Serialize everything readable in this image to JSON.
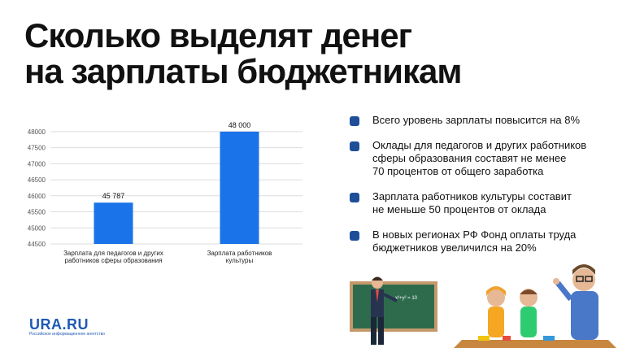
{
  "header": {
    "title_line1": "Сколько выделят денег",
    "title_line2": "на зарплаты бюджетникам"
  },
  "chart_data": {
    "type": "bar",
    "categories": [
      [
        "Зарплата для педагогов и других",
        "работников сферы образования"
      ],
      [
        "Зарплата работников",
        "культуры"
      ]
    ],
    "values": [
      45787,
      48000
    ],
    "data_labels": [
      "45 787",
      "48 000"
    ],
    "ylim": [
      44500,
      48200
    ],
    "yticks": [
      44500,
      45000,
      45500,
      46000,
      46500,
      47000,
      47500,
      48000
    ],
    "grid": true,
    "bar_color": "#1a73e8",
    "grid_color": "#dddddd"
  },
  "bullets": [
    "Всего уровень зарплаты повысится на 8%",
    "Оклады для педагогов и других работников\nсферы образования составят не менее\n70 процентов от общего заработка",
    "Зарплата работников культуры составит\nне меньше 50 процентов от оклада",
    "В новых регионах РФ Фонд оплаты труда\nбюджетников  увеличился на 20%"
  ],
  "logo": {
    "name": "URA.RU",
    "subtitle": "Российское информационное агентство"
  },
  "illustration": {
    "board_text": "x²+y² = 10"
  },
  "colors": {
    "accent": "#1f4e99",
    "bar": "#1a73e8",
    "logo": "#1f5ab4"
  }
}
